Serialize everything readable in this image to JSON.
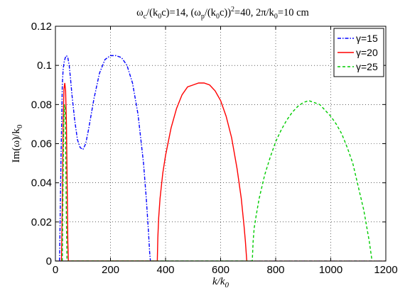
{
  "chart_data": {
    "type": "line",
    "title": {
      "parts": [
        {
          "t": "ω",
          "s": "n"
        },
        {
          "t": "c",
          "s": "sub"
        },
        {
          "t": "/(k",
          "s": "n"
        },
        {
          "t": "0",
          "s": "sub"
        },
        {
          "t": "c)=14, (ω",
          "s": "n"
        },
        {
          "t": "p",
          "s": "sub"
        },
        {
          "t": "/(k",
          "s": "n"
        },
        {
          "t": "0",
          "s": "sub"
        },
        {
          "t": "c))",
          "s": "n"
        },
        {
          "t": "2",
          "s": "sup"
        },
        {
          "t": "=40, 2π/k",
          "s": "n"
        },
        {
          "t": "0",
          "s": "sub"
        },
        {
          "t": "=10 cm",
          "s": "n"
        }
      ]
    },
    "xlabel": {
      "parts": [
        {
          "t": "k/k",
          "s": "n"
        },
        {
          "t": "0",
          "s": "sub"
        }
      ]
    },
    "ylabel": {
      "parts": [
        {
          "t": "Im(ω)/k",
          "s": "n"
        },
        {
          "t": "0",
          "s": "sub"
        }
      ]
    },
    "xlim": [
      0,
      1200
    ],
    "ylim": [
      0,
      0.12
    ],
    "xticks": [
      0,
      200,
      400,
      600,
      800,
      1000,
      1200
    ],
    "xtick_labels": [
      "0",
      "200",
      "400",
      "600",
      "800",
      "1000",
      "1200"
    ],
    "yticks": [
      0,
      0.02,
      0.04,
      0.06,
      0.08,
      0.1,
      0.12
    ],
    "ytick_labels": [
      "0",
      "0.02",
      "0.04",
      "0.06",
      "0.08",
      "0.1",
      "0.12"
    ],
    "grid": true,
    "legend_position": "top-right",
    "series": [
      {
        "name": "γ=15",
        "color": "#0000ff",
        "dash": "dashdot",
        "x": [
          15,
          20,
          25,
          28,
          32,
          36,
          40,
          45,
          50,
          55,
          60,
          70,
          80,
          90,
          100,
          110,
          120,
          140,
          160,
          180,
          200,
          220,
          240,
          260,
          280,
          300,
          320,
          330,
          338,
          342,
          345
        ],
        "y": [
          0,
          0.05,
          0.09,
          0.098,
          0.102,
          0.104,
          0.105,
          0.104,
          0.1,
          0.093,
          0.085,
          0.072,
          0.062,
          0.058,
          0.057,
          0.06,
          0.067,
          0.083,
          0.096,
          0.103,
          0.105,
          0.105,
          0.104,
          0.1,
          0.091,
          0.075,
          0.05,
          0.032,
          0.015,
          0.005,
          0
        ]
      },
      {
        "name": "γ=20",
        "color": "#ff0000",
        "dash": "solid",
        "x": [
          22,
          25,
          28,
          31,
          34,
          37,
          40,
          43,
          45,
          47,
          370,
          372,
          375,
          380,
          390,
          400,
          420,
          440,
          460,
          480,
          500,
          520,
          540,
          560,
          580,
          600,
          620,
          640,
          660,
          675,
          685,
          690,
          693,
          695
        ],
        "y": [
          0,
          0.03,
          0.07,
          0.088,
          0.091,
          0.087,
          0.07,
          0.035,
          0.01,
          0,
          0,
          0.012,
          0.022,
          0.032,
          0.045,
          0.054,
          0.068,
          0.078,
          0.085,
          0.089,
          0.09,
          0.091,
          0.091,
          0.09,
          0.087,
          0.082,
          0.074,
          0.063,
          0.047,
          0.032,
          0.018,
          0.01,
          0.004,
          0
        ]
      },
      {
        "name": "γ=25",
        "color": "#00cc00",
        "dash": "dashed",
        "x": [
          25,
          27,
          30,
          33,
          35,
          37,
          40,
          42,
          715,
          718,
          722,
          730,
          740,
          760,
          780,
          800,
          820,
          840,
          860,
          880,
          900,
          920,
          940,
          960,
          980,
          1000,
          1020,
          1040,
          1060,
          1080,
          1100,
          1110,
          1120,
          1130,
          1140,
          1145,
          1148,
          1150
        ],
        "y": [
          0,
          0.03,
          0.07,
          0.08,
          0.078,
          0.06,
          0.02,
          0,
          0,
          0.01,
          0.017,
          0.024,
          0.032,
          0.044,
          0.053,
          0.061,
          0.067,
          0.072,
          0.076,
          0.079,
          0.081,
          0.082,
          0.081,
          0.08,
          0.077,
          0.074,
          0.07,
          0.065,
          0.058,
          0.05,
          0.038,
          0.032,
          0.026,
          0.018,
          0.01,
          0.005,
          0.002,
          0
        ]
      }
    ]
  }
}
